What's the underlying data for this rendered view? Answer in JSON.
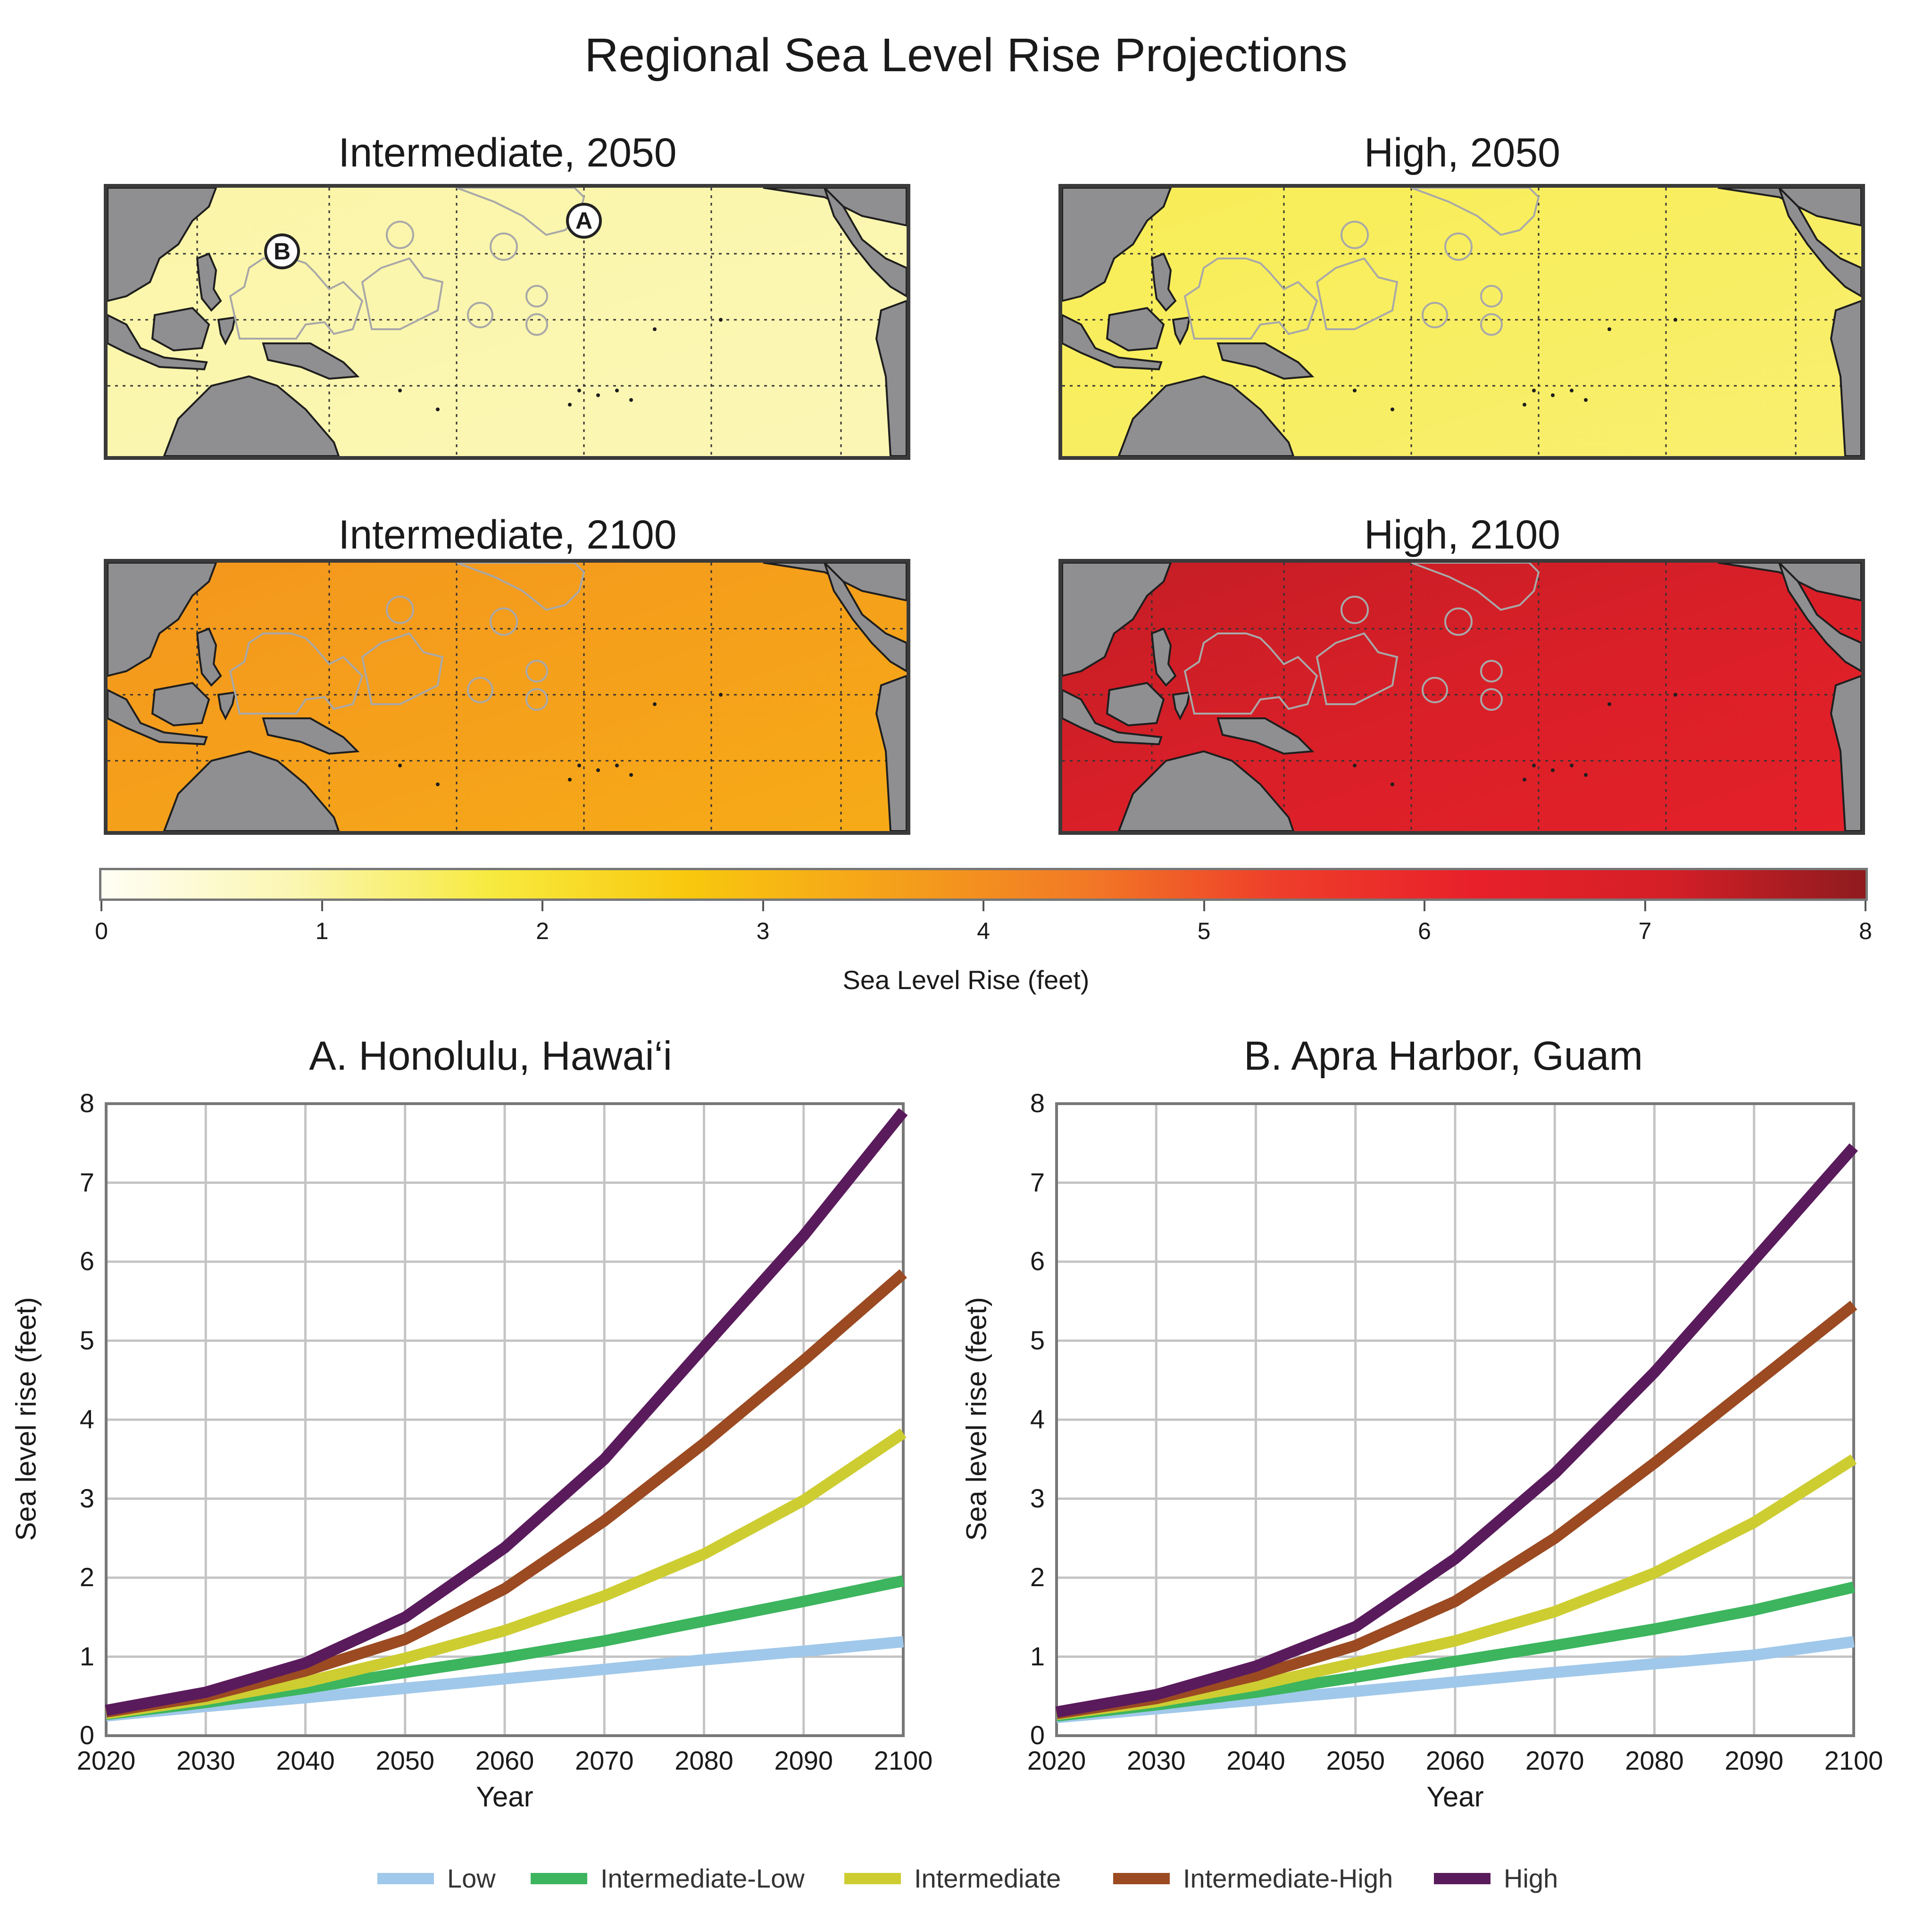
{
  "title": "Regional Sea Level Rise Projections",
  "maps": [
    {
      "title": "Intermediate, 2050",
      "level_ft": 0.9,
      "show_markers": true
    },
    {
      "title": "High, 2050",
      "level_ft": 1.5,
      "show_markers": false
    },
    {
      "title": "Intermediate, 2100",
      "level_ft": 3.6,
      "show_markers": false
    },
    {
      "title": "High, 2100",
      "level_ft": 6.9,
      "show_markers": false
    }
  ],
  "markers": {
    "a": "A",
    "b": "B"
  },
  "colorbar": {
    "label": "Sea Level Rise (feet)",
    "ticks": [
      "0",
      "1",
      "2",
      "3",
      "4",
      "5",
      "6",
      "7",
      "8"
    ],
    "range": [
      0,
      8
    ],
    "colors": [
      "#fffef5",
      "#fbf6b0",
      "#f7ea3e",
      "#f9c80e",
      "#f5a21a",
      "#f27a25",
      "#ee3e2a",
      "#e8202a",
      "#d41f27",
      "#8e1b1e"
    ]
  },
  "chart_data": [
    {
      "type": "line",
      "title": "A. Honolulu, Hawai‘i",
      "xlabel": "Year",
      "ylabel": "Sea level rise (feet)",
      "x": [
        2020,
        2030,
        2040,
        2050,
        2060,
        2070,
        2080,
        2090,
        2100
      ],
      "xticks": [
        "2020",
        "2030",
        "2040",
        "2050",
        "2060",
        "2070",
        "2080",
        "2090",
        "2100"
      ],
      "yticks": [
        "0",
        "1",
        "2",
        "3",
        "4",
        "5",
        "6",
        "7",
        "8"
      ],
      "xlim": [
        2020,
        2100
      ],
      "ylim": [
        0,
        8
      ],
      "grid": true,
      "series": [
        {
          "name": "Low",
          "color": "#a0c8ea",
          "values": [
            0.25,
            0.37,
            0.48,
            0.6,
            0.72,
            0.84,
            0.96,
            1.07,
            1.19
          ]
        },
        {
          "name": "Intermediate-Low",
          "color": "#3cb55e",
          "values": [
            0.27,
            0.42,
            0.6,
            0.8,
            0.99,
            1.2,
            1.45,
            1.7,
            1.96
          ]
        },
        {
          "name": "Intermediate",
          "color": "#cdcd32",
          "values": [
            0.28,
            0.46,
            0.68,
            0.98,
            1.33,
            1.77,
            2.3,
            2.98,
            3.83
          ]
        },
        {
          "name": "Intermediate-High",
          "color": "#9b4a22",
          "values": [
            0.3,
            0.5,
            0.82,
            1.22,
            1.86,
            2.72,
            3.7,
            4.75,
            5.85
          ]
        },
        {
          "name": "High",
          "color": "#5a1b5c",
          "values": [
            0.32,
            0.55,
            0.92,
            1.5,
            2.38,
            3.5,
            4.92,
            6.33,
            7.9
          ]
        }
      ]
    },
    {
      "type": "line",
      "title": "B. Apra Harbor, Guam",
      "xlabel": "Year",
      "ylabel": "Sea level rise (feet)",
      "x": [
        2020,
        2030,
        2040,
        2050,
        2060,
        2070,
        2080,
        2090,
        2100
      ],
      "xticks": [
        "2020",
        "2030",
        "2040",
        "2050",
        "2060",
        "2070",
        "2080",
        "2090",
        "2100"
      ],
      "yticks": [
        "0",
        "1",
        "2",
        "3",
        "4",
        "5",
        "6",
        "7",
        "8"
      ],
      "xlim": [
        2020,
        2100
      ],
      "ylim": [
        0,
        8
      ],
      "grid": true,
      "series": [
        {
          "name": "Low",
          "color": "#a0c8ea",
          "values": [
            0.23,
            0.34,
            0.45,
            0.56,
            0.68,
            0.8,
            0.91,
            1.02,
            1.19
          ]
        },
        {
          "name": "Intermediate-Low",
          "color": "#3cb55e",
          "values": [
            0.25,
            0.39,
            0.55,
            0.74,
            0.94,
            1.14,
            1.35,
            1.59,
            1.88
          ]
        },
        {
          "name": "Intermediate",
          "color": "#cdcd32",
          "values": [
            0.27,
            0.43,
            0.64,
            0.92,
            1.2,
            1.57,
            2.06,
            2.7,
            3.5
          ]
        },
        {
          "name": "Intermediate-High",
          "color": "#9b4a22",
          "values": [
            0.28,
            0.47,
            0.76,
            1.14,
            1.7,
            2.5,
            3.45,
            4.45,
            5.45
          ]
        },
        {
          "name": "High",
          "color": "#5a1b5c",
          "values": [
            0.3,
            0.52,
            0.88,
            1.38,
            2.24,
            3.32,
            4.6,
            6.02,
            7.45
          ]
        }
      ]
    }
  ]
}
